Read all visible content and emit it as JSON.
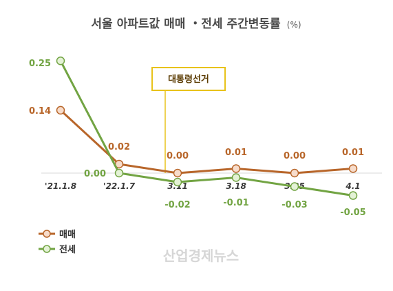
{
  "chart_data": {
    "type": "line",
    "title": "서울 아파트값 매매 ・전세 주간변동률",
    "title_unit": "(%)",
    "categories": [
      "'21.1.8",
      "'22.1.7",
      "3.11",
      "3.18",
      "3.25",
      "4.1"
    ],
    "series": [
      {
        "name": "매매",
        "color": "#b8662a",
        "marker_fill": "#f7dccb",
        "values": [
          0.14,
          0.02,
          0.0,
          0.01,
          0.0,
          0.01
        ],
        "labels": [
          "0.14",
          "0.02",
          "0.00",
          "0.01",
          "0.00",
          "0.01"
        ]
      },
      {
        "name": "전세",
        "color": "#72a443",
        "marker_fill": "#e4f2d6",
        "values": [
          0.25,
          0.0,
          -0.02,
          -0.01,
          -0.03,
          -0.05
        ],
        "labels": [
          "0.25",
          "0.00",
          "-0.02",
          "-0.01",
          "-0.03",
          "-0.05"
        ]
      }
    ],
    "annotation": {
      "text": "대통령선거",
      "between": [
        "'22.1.7",
        "3.11"
      ],
      "color": "#e8c21a"
    },
    "ylim": [
      -0.06,
      0.26
    ],
    "grid": false,
    "legend_position": "bottom-left",
    "watermark": "산업경제뉴스"
  }
}
